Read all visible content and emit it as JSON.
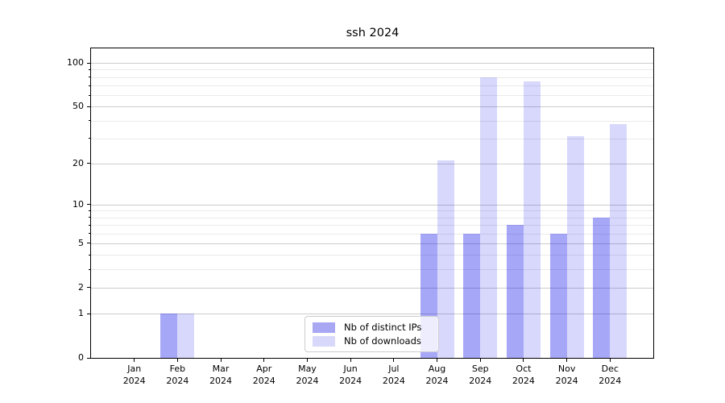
{
  "figure": {
    "background": "#ffffff"
  },
  "chart_data": {
    "type": "bar",
    "title": "ssh 2024",
    "categories": [
      "Jan 2024",
      "Feb 2024",
      "Mar 2024",
      "Apr 2024",
      "May 2024",
      "Jun 2024",
      "Jul 2024",
      "Aug 2024",
      "Sep 2024",
      "Oct 2024",
      "Nov 2024",
      "Dec 2024"
    ],
    "series": [
      {
        "name": "Nb of distinct IPs",
        "color": "rgba(10,10,235,0.36)",
        "legend_color": "#a7a7f4",
        "values": [
          0,
          1,
          0,
          0,
          0,
          0,
          0,
          6,
          6,
          7,
          6,
          8
        ]
      },
      {
        "name": "Nb of downloads",
        "color": "rgba(10,10,235,0.16)",
        "legend_color": "#d8d8fa",
        "values": [
          0,
          1,
          0,
          0,
          0,
          0,
          0,
          21,
          80,
          75,
          31,
          38
        ]
      }
    ],
    "yscale": "log1p",
    "ylim": [
      0,
      126
    ],
    "yticks": [
      0,
      1,
      2,
      5,
      10,
      20,
      50,
      100
    ],
    "minor_yticks": [
      3,
      4,
      6,
      7,
      8,
      9,
      30,
      40,
      60,
      70,
      80,
      90
    ],
    "xlabel": "",
    "ylabel": "",
    "grid": true,
    "legend_position": "lower center",
    "colors": {
      "major_grid": "#cccccc",
      "minor_grid": "#eaeaea",
      "axis": "#000000",
      "text": "#000000"
    }
  }
}
